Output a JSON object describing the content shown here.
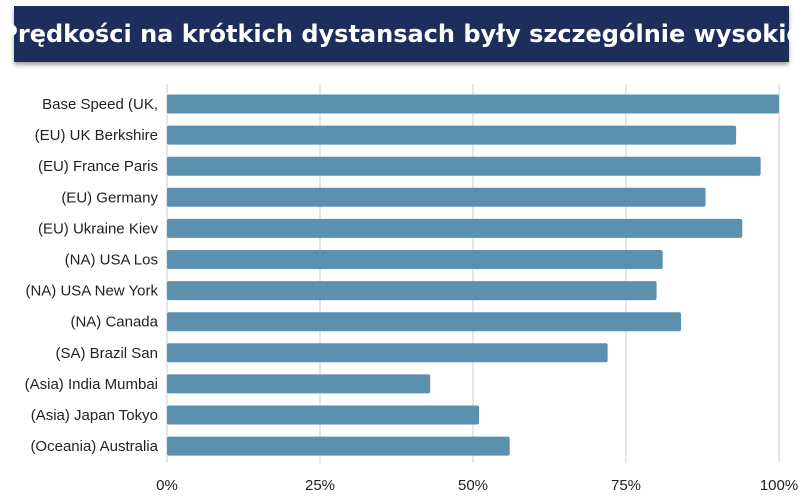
{
  "header": {
    "title": "Prędkości na krótkich dystansach były szczególnie wysokie"
  },
  "colors": {
    "title_bg": "#1e2e5c",
    "bar": "#5b91ae",
    "grid": "#cccccc"
  },
  "chart_data": {
    "type": "bar",
    "orientation": "horizontal",
    "title": "Prędkości na krótkich dystansach były szczególnie wysokie",
    "categories": [
      "Base Speed (UK,",
      "(EU) UK Berkshire",
      "(EU) France Paris",
      "(EU) Germany",
      "(EU) Ukraine Kiev",
      "(NA) USA Los",
      "(NA) USA New York",
      "(NA) Canada",
      "(SA) Brazil San",
      "(Asia) India Mumbai",
      "(Asia) Japan Tokyo",
      "(Oceania) Australia"
    ],
    "values": [
      100,
      93,
      97,
      88,
      94,
      81,
      80,
      84,
      72,
      43,
      51,
      56
    ],
    "xlim": [
      0,
      100
    ],
    "xticks": [
      0,
      25,
      50,
      75,
      100
    ],
    "xtick_labels": [
      "0%",
      "25%",
      "50%",
      "75%",
      "100%"
    ],
    "xlabel": "",
    "ylabel": "",
    "grid": "vertical",
    "legend": "none"
  }
}
